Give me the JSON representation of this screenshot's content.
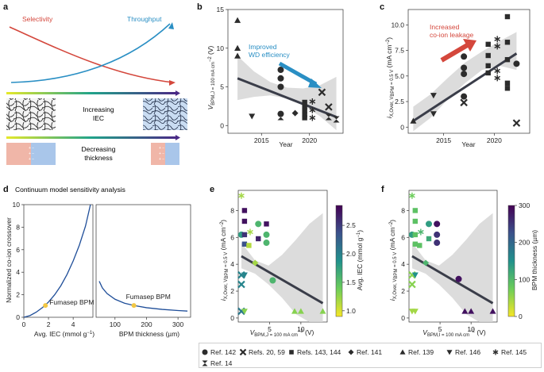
{
  "panels": {
    "a": {
      "label": "a",
      "selectivity": "Selectivity",
      "throughput": "Throughput",
      "iec_text_1": "Increasing",
      "iec_text_2": "IEC",
      "thickness_text_1": "Decreasing",
      "thickness_text_2": "thickness",
      "colors": {
        "selectivity": "#d4473c",
        "throughput": "#2a8fc4",
        "gradient_start": "#e6e92a",
        "gradient_mid": "#21a38a",
        "gradient_end": "#4a2a86",
        "membrane_left": "#f0b6a8",
        "membrane_right": "#a9c6ea"
      }
    },
    "b": {
      "label": "b",
      "ylabel_main": "V",
      "ylabel_sub": "BPM,J = 100 mA cm",
      "ylabel_sup": "−2",
      "ylabel_unit": " (V)",
      "xlabel": "Year",
      "annotation": [
        "Improved",
        "WD efficiency"
      ],
      "annotation_color": "#2a8fc4",
      "x_ticks": [
        "2015",
        "2020"
      ],
      "y_ticks": [
        "0",
        "5",
        "10",
        "15"
      ]
    },
    "c": {
      "label": "c",
      "ylabel_main": "i",
      "ylabel_sub": "X,Over, V",
      "ylabel_sub2": "BPM",
      "ylabel_sub3": " = 0.5 V",
      "ylabel_unit": " (mA cm",
      "ylabel_sup": "−2",
      "ylabel_close": ")",
      "xlabel": "Year",
      "annotation": [
        "Increased",
        "co-ion leakage"
      ],
      "annotation_color": "#d4473c",
      "x_ticks": [
        "2015",
        "2020"
      ],
      "y_ticks": [
        "0",
        "2.5",
        "5.0",
        "7.5",
        "10.0"
      ]
    },
    "d": {
      "label": "d",
      "title": "Continuum model sensitivity analysis",
      "ylabel_1": "Normalized co-ion crossover",
      "xlabel_left": "Avg. IEC (mmol g",
      "xlabel_left_sup": "−1",
      "xlabel_left_close": ")",
      "xlabel_right": "BPM thickness (µm)",
      "marker_label_left": "Fumasep BPM",
      "marker_label_right": "Fumasep BPM",
      "left_x_ticks": [
        "0",
        "2",
        "4"
      ],
      "right_x_ticks": [
        "100",
        "200",
        "300"
      ],
      "y_ticks": [
        "0",
        "2",
        "4",
        "6",
        "8",
        "10"
      ],
      "curve_color": "#1f4e99",
      "marker_color": "#f2c744"
    },
    "e": {
      "label": "e",
      "ylabel_main": "i",
      "ylabel_sub": "X,Over, V",
      "ylabel_sub2": "BPM",
      "ylabel_sub3": " = 0.5 V",
      "ylabel_unit": " (mA cm",
      "ylabel_sup": "−2",
      "ylabel_close": ")",
      "xlabel_main": "V",
      "xlabel_sub": "BPM,J = 100 mA cm",
      "xlabel_sup": "−2",
      "xlabel_unit": " (V)",
      "x_ticks": [
        "5",
        "10"
      ],
      "y_ticks": [
        "0",
        "2",
        "4",
        "6",
        "8"
      ],
      "colorbar_label": "Avg. IEC (mmol g",
      "colorbar_label_sup": "−1",
      "colorbar_label_close": ")",
      "colorbar_ticks": [
        "1.0",
        "1.5",
        "2.0",
        "2.5"
      ]
    },
    "f": {
      "label": "f",
      "ylabel_main": "i",
      "ylabel_sub": "X,Over, V",
      "ylabel_sub2": "BPM",
      "ylabel_sub3": " = 0.5 V",
      "ylabel_unit": " (mA cm",
      "ylabel_sup": "−2",
      "ylabel_close": ")",
      "xlabel_main": "V",
      "xlabel_sub": "BPM,I = 100 mA cm",
      "xlabel_sup": "−2",
      "xlabel_unit": " (V)",
      "x_ticks": [
        "5",
        "10"
      ],
      "y_ticks": [
        "0",
        "2",
        "4",
        "6",
        "8"
      ],
      "colorbar_label": "BPM thickness (µm)",
      "colorbar_ticks": [
        "0",
        "100",
        "200",
        "300"
      ]
    }
  },
  "legend": [
    {
      "marker": "circle",
      "label": "Ref. 142"
    },
    {
      "marker": "cross",
      "label": "Refs. 20, 59"
    },
    {
      "marker": "square",
      "label": "Refs. 143, 144"
    },
    {
      "marker": "diamond",
      "label": "Ref. 141"
    },
    {
      "marker": "triangle-up",
      "label": "Ref. 139"
    },
    {
      "marker": "triangle-down",
      "label": "Ref. 146"
    },
    {
      "marker": "asterisk",
      "label": "Ref. 145"
    },
    {
      "marker": "hourglass",
      "label": "Ref. 14"
    }
  ],
  "chart_data": [
    {
      "id": "b",
      "type": "scatter",
      "xlabel": "Year",
      "ylabel": "V_BPM,J=100 mA cm−2 (V)",
      "xlim": [
        2011.5,
        2023.5
      ],
      "ylim": [
        -1,
        15
      ],
      "points": [
        {
          "x": 2012.5,
          "y": 13.6,
          "m": "triangle-up"
        },
        {
          "x": 2012.5,
          "y": 10.0,
          "m": "triangle-up"
        },
        {
          "x": 2012.5,
          "y": 9.0,
          "m": "triangle-up"
        },
        {
          "x": 2014,
          "y": 1.2,
          "m": "triangle-down"
        },
        {
          "x": 2017,
          "y": 7.2,
          "m": "circle"
        },
        {
          "x": 2017,
          "y": 6.1,
          "m": "circle"
        },
        {
          "x": 2017,
          "y": 5.0,
          "m": "circle"
        },
        {
          "x": 2017,
          "y": 1.5,
          "m": "circle"
        },
        {
          "x": 2017,
          "y": 1.1,
          "m": "hourglass"
        },
        {
          "x": 2018.5,
          "y": 1.6,
          "m": "diamond"
        },
        {
          "x": 2019.5,
          "y": 3.0,
          "m": "square"
        },
        {
          "x": 2019.5,
          "y": 2.4,
          "m": "square"
        },
        {
          "x": 2019.5,
          "y": 1.9,
          "m": "square"
        },
        {
          "x": 2019.5,
          "y": 1.4,
          "m": "square"
        },
        {
          "x": 2019.5,
          "y": 1.0,
          "m": "square"
        },
        {
          "x": 2020.3,
          "y": 3.1,
          "m": "asterisk"
        },
        {
          "x": 2020.3,
          "y": 2.0,
          "m": "asterisk"
        },
        {
          "x": 2020.3,
          "y": 1.0,
          "m": "asterisk"
        },
        {
          "x": 2021.3,
          "y": 4.3,
          "m": "cross"
        },
        {
          "x": 2022,
          "y": 2.4,
          "m": "cross"
        },
        {
          "x": 2022,
          "y": 1.1,
          "m": "hourglass"
        },
        {
          "x": 2022.8,
          "y": 0.8,
          "m": "hourglass"
        }
      ],
      "fit": {
        "x": [
          2012.5,
          2022.8
        ],
        "y": [
          6.1,
          1.1
        ]
      },
      "ci_upper": [
        9.0,
        7.0,
        5.6,
        4.9,
        4.8,
        5.2,
        6.3
      ],
      "ci_lower": [
        3.3,
        3.7,
        3.9,
        3.5,
        2.6,
        1.2,
        -0.6
      ]
    },
    {
      "id": "c",
      "type": "scatter",
      "xlabel": "Year",
      "ylabel": "i_X,Over (mA cm−2)",
      "xlim": [
        2011.5,
        2023.5
      ],
      "ylim": [
        -0.6,
        11.5
      ],
      "points": [
        {
          "x": 2012,
          "y": 0.6,
          "m": "triangle-up"
        },
        {
          "x": 2014,
          "y": 3.1,
          "m": "triangle-down"
        },
        {
          "x": 2014,
          "y": 1.3,
          "m": "triangle-down"
        },
        {
          "x": 2017,
          "y": 6.9,
          "m": "circle"
        },
        {
          "x": 2017,
          "y": 5.8,
          "m": "circle"
        },
        {
          "x": 2017,
          "y": 5.2,
          "m": "circle"
        },
        {
          "x": 2017,
          "y": 3.0,
          "m": "circle"
        },
        {
          "x": 2017,
          "y": 2.4,
          "m": "cross"
        },
        {
          "x": 2019.4,
          "y": 8.1,
          "m": "square"
        },
        {
          "x": 2019.4,
          "y": 7.0,
          "m": "square"
        },
        {
          "x": 2019.4,
          "y": 6.0,
          "m": "square"
        },
        {
          "x": 2019.4,
          "y": 5.3,
          "m": "square"
        },
        {
          "x": 2020.3,
          "y": 8.6,
          "m": "asterisk"
        },
        {
          "x": 2020.3,
          "y": 7.9,
          "m": "asterisk"
        },
        {
          "x": 2020.3,
          "y": 5.5,
          "m": "asterisk"
        },
        {
          "x": 2020.3,
          "y": 4.8,
          "m": "asterisk"
        },
        {
          "x": 2021.3,
          "y": 10.8,
          "m": "square"
        },
        {
          "x": 2021.3,
          "y": 8.3,
          "m": "square"
        },
        {
          "x": 2021.3,
          "y": 6.6,
          "m": "square"
        },
        {
          "x": 2021.3,
          "y": 4.3,
          "m": "square"
        },
        {
          "x": 2021.3,
          "y": 3.8,
          "m": "square"
        },
        {
          "x": 2022.2,
          "y": 6.2,
          "m": "circle"
        },
        {
          "x": 2022.2,
          "y": 0.4,
          "m": "cross"
        }
      ],
      "fit": {
        "x": [
          2012,
          2022.2
        ],
        "y": [
          0.6,
          7.2
        ]
      },
      "ci_upper": [
        2.0,
        3.2,
        4.8,
        6.3,
        7.4,
        8.4,
        9.3
      ],
      "ci_lower": [
        -0.4,
        0.9,
        2.7,
        4.3,
        5.6,
        6.0,
        5.6
      ]
    },
    {
      "id": "d_left",
      "type": "line",
      "xlabel": "Avg. IEC (mmol g−1)",
      "ylabel": "Normalized co-ion crossover",
      "xlim": [
        0,
        5.6
      ],
      "ylim": [
        0,
        10
      ],
      "x": [
        0,
        0.5,
        1.0,
        1.5,
        2.0,
        2.5,
        3.0,
        3.5,
        4.0,
        4.5,
        5.0,
        5.4
      ],
      "y": [
        0,
        0.15,
        0.45,
        0.85,
        1.35,
        2.0,
        2.8,
        3.8,
        5.0,
        6.4,
        8.1,
        10.0
      ],
      "marker": {
        "x": 1.75,
        "y": 1.05,
        "label": "Fumasep BPM"
      }
    },
    {
      "id": "d_right",
      "type": "line",
      "xlabel": "BPM thickness (µm)",
      "ylim": [
        0,
        10
      ],
      "xlim": [
        40,
        340
      ],
      "x": [
        50,
        60,
        75,
        100,
        130,
        160,
        200,
        250,
        300,
        330
      ],
      "y": [
        3.2,
        2.6,
        2.1,
        1.6,
        1.25,
        1.05,
        0.85,
        0.7,
        0.6,
        0.55
      ],
      "marker": {
        "x": 160,
        "y": 1.05,
        "label": "Fumasep BPM"
      }
    },
    {
      "id": "e",
      "type": "scatter",
      "colorbar": "IEC",
      "xlim": [
        0,
        14.2
      ],
      "ylim": [
        -0.3,
        9.5
      ],
      "points": [
        {
          "x": 0.5,
          "y": 9.1,
          "m": "asterisk",
          "c": 0.15
        },
        {
          "x": 0.5,
          "y": 6.2,
          "m": "circle",
          "c": 0.45
        },
        {
          "x": 0.5,
          "y": 3.2,
          "m": "cross",
          "c": 0.55
        },
        {
          "x": 0.5,
          "y": 2.5,
          "m": "cross",
          "c": 0.55
        },
        {
          "x": 0.5,
          "y": 0.5,
          "m": "cross",
          "c": 0.6
        },
        {
          "x": 1.0,
          "y": 8.0,
          "m": "square",
          "c": 0.95
        },
        {
          "x": 1.0,
          "y": 7.2,
          "m": "square",
          "c": 0.95
        },
        {
          "x": 1.0,
          "y": 6.2,
          "m": "square",
          "c": 0.85
        },
        {
          "x": 1.0,
          "y": 5.5,
          "m": "square",
          "c": 0.75
        },
        {
          "x": 1.0,
          "y": 3.2,
          "m": "triangle-down",
          "c": 0.55
        },
        {
          "x": 1.0,
          "y": 0.5,
          "m": "triangle-down",
          "c": 0.2
        },
        {
          "x": 1.7,
          "y": 5.4,
          "m": "square",
          "c": 0.12
        },
        {
          "x": 1.9,
          "y": 6.4,
          "m": "asterisk",
          "c": 0.15
        },
        {
          "x": 2.7,
          "y": 4.1,
          "m": "diamond",
          "c": 0.15
        },
        {
          "x": 3.2,
          "y": 7.0,
          "m": "circle",
          "c": 0.35
        },
        {
          "x": 3.2,
          "y": 5.9,
          "m": "square",
          "c": 0.9
        },
        {
          "x": 4.5,
          "y": 6.2,
          "m": "circle",
          "c": 0.35
        },
        {
          "x": 4.5,
          "y": 5.6,
          "m": "circle",
          "c": 0.35
        },
        {
          "x": 4.5,
          "y": 7.0,
          "m": "square",
          "c": 0.95
        },
        {
          "x": 5.5,
          "y": 2.8,
          "m": "circle",
          "c": 0.35
        },
        {
          "x": 9.0,
          "y": 0.5,
          "m": "triangle-up",
          "c": 0.2
        },
        {
          "x": 10.0,
          "y": 0.5,
          "m": "triangle-up",
          "c": 0.2
        },
        {
          "x": 13.5,
          "y": 0.5,
          "m": "triangle-up",
          "c": 0.2
        }
      ],
      "fit": {
        "x": [
          0.5,
          13.5
        ],
        "y": [
          4.6,
          1.1
        ]
      },
      "ci_upper": [
        5.6,
        4.3,
        3.9,
        4.7,
        5.8,
        7.0,
        7.8
      ],
      "ci_lower": [
        3.7,
        3.3,
        2.5,
        1.5,
        0.3,
        -0.3,
        -0.3
      ]
    },
    {
      "id": "f",
      "type": "scatter",
      "colorbar": "thickness",
      "xlim": [
        0,
        14.2
      ],
      "ylim": [
        -0.3,
        9.5
      ],
      "points": [
        {
          "x": 0.5,
          "y": 9.1,
          "m": "asterisk",
          "c": 0.25
        },
        {
          "x": 0.5,
          "y": 6.2,
          "m": "circle",
          "c": 0.45
        },
        {
          "x": 0.5,
          "y": 3.2,
          "m": "cross",
          "c": 0.2
        },
        {
          "x": 0.5,
          "y": 2.5,
          "m": "cross",
          "c": 0.2
        },
        {
          "x": 0.5,
          "y": 0.5,
          "m": "triangle-down",
          "c": 0.15
        },
        {
          "x": 1.0,
          "y": 8.0,
          "m": "square",
          "c": 0.3
        },
        {
          "x": 1.0,
          "y": 7.2,
          "m": "square",
          "c": 0.3
        },
        {
          "x": 1.0,
          "y": 6.2,
          "m": "square",
          "c": 0.3
        },
        {
          "x": 1.0,
          "y": 5.5,
          "m": "square",
          "c": 0.3
        },
        {
          "x": 1.0,
          "y": 3.2,
          "m": "triangle-down",
          "c": 0.5
        },
        {
          "x": 1.0,
          "y": 0.5,
          "m": "triangle-down",
          "c": 0.15
        },
        {
          "x": 1.7,
          "y": 5.4,
          "m": "square",
          "c": 0.3
        },
        {
          "x": 1.9,
          "y": 6.4,
          "m": "asterisk",
          "c": 0.35
        },
        {
          "x": 2.7,
          "y": 4.1,
          "m": "diamond",
          "c": 0.35
        },
        {
          "x": 3.2,
          "y": 7.0,
          "m": "circle",
          "c": 0.45
        },
        {
          "x": 3.2,
          "y": 5.9,
          "m": "square",
          "c": 0.4
        },
        {
          "x": 4.5,
          "y": 6.2,
          "m": "circle",
          "c": 0.85
        },
        {
          "x": 4.5,
          "y": 5.6,
          "m": "circle",
          "c": 0.85
        },
        {
          "x": 4.5,
          "y": 7.0,
          "m": "circle",
          "c": 0.95
        },
        {
          "x": 8.0,
          "y": 2.9,
          "m": "circle",
          "c": 0.95
        },
        {
          "x": 9.0,
          "y": 0.5,
          "m": "triangle-up",
          "c": 0.95
        },
        {
          "x": 10.0,
          "y": 0.5,
          "m": "triangle-up",
          "c": 0.95
        },
        {
          "x": 13.5,
          "y": 0.5,
          "m": "triangle-up",
          "c": 0.95
        }
      ],
      "fit": {
        "x": [
          0.5,
          13.5
        ],
        "y": [
          4.6,
          1.1
        ]
      },
      "ci_upper": [
        5.6,
        4.3,
        3.9,
        4.7,
        5.8,
        7.0,
        7.8
      ],
      "ci_lower": [
        3.7,
        3.3,
        2.5,
        1.5,
        0.3,
        -0.3,
        -0.3
      ]
    }
  ]
}
